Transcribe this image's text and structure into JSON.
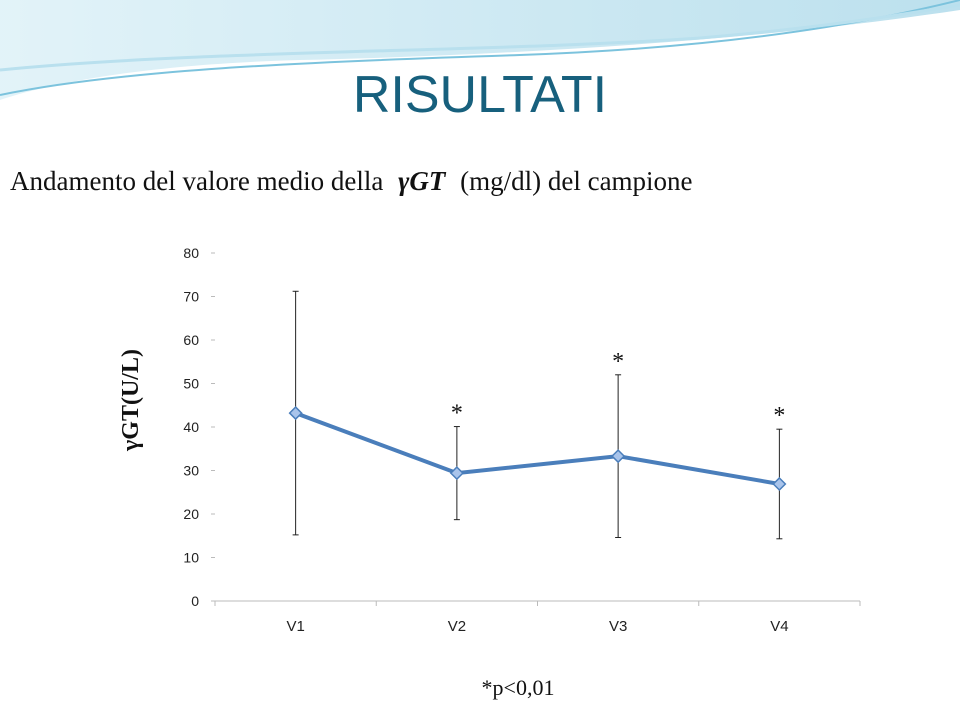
{
  "chart_data": {
    "type": "line",
    "title": "RISULTATI",
    "subtitle": [
      "Andamento del valore medio della",
      "γGT",
      "(mg/dl) del campione"
    ],
    "y_label": "γGT(U/L)",
    "categories": [
      "V1",
      "V2",
      "V3",
      "V4"
    ],
    "series": [
      {
        "name": "γGT",
        "color": "#4a7ebb",
        "values": [
          43.2,
          29.4,
          33.3,
          26.9
        ],
        "errors": [
          28,
          10.7,
          18.7,
          12.6
        ]
      }
    ],
    "annotations": [
      null,
      "*",
      "*",
      "*"
    ],
    "footnote": "*p<0,01",
    "ylim": [
      0,
      80
    ],
    "yticks": [
      0,
      10,
      20,
      30,
      40,
      50,
      60,
      70,
      80
    ]
  }
}
